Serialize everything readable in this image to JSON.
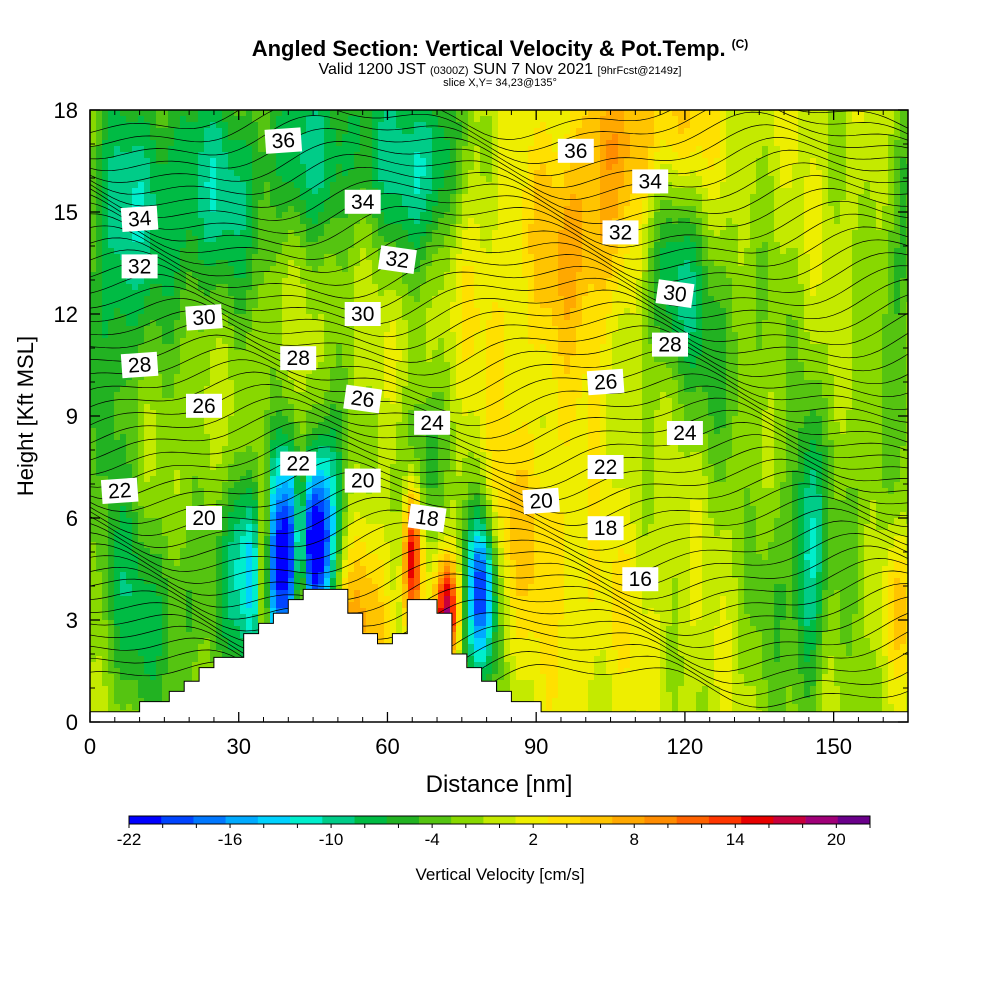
{
  "title": {
    "main": "Angled Section: Vertical Velocity & Pot.Temp.",
    "copyright": "(C)",
    "valid_prefix": "Valid 1200 JST",
    "valid_utc": "(0300Z)",
    "valid_date": "SUN 7 Nov 2021",
    "forecast": "[9hrFcst@2149z]",
    "slice": "slice X,Y= 34,23@135°"
  },
  "chart_data": {
    "type": "heatmap",
    "xlabel": "Distance [nm]",
    "ylabel": "Height [Kft MSL]",
    "xlim": [
      0,
      165
    ],
    "ylim": [
      0,
      18
    ],
    "x_ticks": [
      0,
      30,
      60,
      90,
      120,
      150
    ],
    "y_ticks": [
      0,
      3,
      6,
      9,
      12,
      15,
      18
    ],
    "grid": false,
    "colorbar": {
      "label": "Vertical Velocity [cm/s]",
      "tick_labels": [
        "-22",
        "-16",
        "-10",
        "-4",
        "2",
        "8",
        "14",
        "20"
      ],
      "tick_values": [
        -22,
        -16,
        -10,
        -4,
        2,
        8,
        14,
        20
      ],
      "levels": [
        -22,
        -20,
        -18,
        -16,
        -14,
        -12,
        -10,
        -8,
        -6,
        -4,
        -2,
        0,
        2,
        4,
        6,
        8,
        10,
        12,
        14,
        16,
        18,
        20,
        22
      ],
      "colors": [
        "#0000ff",
        "#0044ff",
        "#0077ff",
        "#00aaff",
        "#00d2ff",
        "#00eecc",
        "#00cc88",
        "#00bb44",
        "#22b222",
        "#55c411",
        "#88d800",
        "#c4ea00",
        "#eeee00",
        "#ffe000",
        "#ffc400",
        "#ffa800",
        "#ff8c00",
        "#ff6200",
        "#ff3600",
        "#e80000",
        "#c8003c",
        "#a00078",
        "#6a008a"
      ]
    },
    "theta_contours": {
      "levels": [
        16,
        18,
        20,
        22,
        24,
        26,
        28,
        30,
        32,
        34,
        36
      ],
      "labels": [
        {
          "text": "36",
          "x": 39,
          "y": 17.1
        },
        {
          "text": "36",
          "x": 98,
          "y": 16.8
        },
        {
          "text": "34",
          "x": 55,
          "y": 15.3
        },
        {
          "text": "34",
          "x": 113,
          "y": 15.9
        },
        {
          "text": "34",
          "x": 10,
          "y": 14.8
        },
        {
          "text": "32",
          "x": 62,
          "y": 13.6
        },
        {
          "text": "32",
          "x": 107,
          "y": 14.4
        },
        {
          "text": "32",
          "x": 10,
          "y": 13.4
        },
        {
          "text": "30",
          "x": 23,
          "y": 11.9
        },
        {
          "text": "30",
          "x": 55,
          "y": 12.0
        },
        {
          "text": "30",
          "x": 118,
          "y": 12.6
        },
        {
          "text": "28",
          "x": 42,
          "y": 10.7
        },
        {
          "text": "28",
          "x": 10,
          "y": 10.5
        },
        {
          "text": "28",
          "x": 117,
          "y": 11.1
        },
        {
          "text": "26",
          "x": 23,
          "y": 9.3
        },
        {
          "text": "26",
          "x": 55,
          "y": 9.5
        },
        {
          "text": "26",
          "x": 104,
          "y": 10.0
        },
        {
          "text": "24",
          "x": 69,
          "y": 8.8
        },
        {
          "text": "24",
          "x": 120,
          "y": 8.5
        },
        {
          "text": "22",
          "x": 42,
          "y": 7.6
        },
        {
          "text": "22",
          "x": 6,
          "y": 6.8
        },
        {
          "text": "22",
          "x": 104,
          "y": 7.5
        },
        {
          "text": "20",
          "x": 55,
          "y": 7.1
        },
        {
          "text": "20",
          "x": 23,
          "y": 6.0
        },
        {
          "text": "20",
          "x": 91,
          "y": 6.5
        },
        {
          "text": "18",
          "x": 68,
          "y": 6.0
        },
        {
          "text": "18",
          "x": 104,
          "y": 5.7
        },
        {
          "text": "16",
          "x": 111,
          "y": 4.2
        }
      ]
    },
    "terrain": [
      [
        0,
        0.3
      ],
      [
        10,
        0.3
      ],
      [
        10,
        0.6
      ],
      [
        16,
        0.6
      ],
      [
        16,
        0.9
      ],
      [
        19,
        0.9
      ],
      [
        19,
        1.2
      ],
      [
        22,
        1.2
      ],
      [
        22,
        1.6
      ],
      [
        25,
        1.6
      ],
      [
        25,
        1.9
      ],
      [
        31,
        1.9
      ],
      [
        31,
        2.6
      ],
      [
        34,
        2.6
      ],
      [
        34,
        2.9
      ],
      [
        37,
        2.9
      ],
      [
        37,
        3.2
      ],
      [
        40,
        3.2
      ],
      [
        40,
        3.6
      ],
      [
        43,
        3.6
      ],
      [
        43,
        3.9
      ],
      [
        52,
        3.9
      ],
      [
        52,
        3.2
      ],
      [
        55,
        3.2
      ],
      [
        55,
        2.6
      ],
      [
        58,
        2.6
      ],
      [
        58,
        2.3
      ],
      [
        61,
        2.3
      ],
      [
        61,
        2.6
      ],
      [
        64,
        2.6
      ],
      [
        64,
        3.6
      ],
      [
        70,
        3.6
      ],
      [
        70,
        3.2
      ],
      [
        73,
        3.2
      ],
      [
        73,
        2.0
      ],
      [
        76,
        2.0
      ],
      [
        76,
        1.6
      ],
      [
        79,
        1.6
      ],
      [
        79,
        1.2
      ],
      [
        82,
        1.2
      ],
      [
        82,
        0.9
      ],
      [
        85,
        0.9
      ],
      [
        85,
        0.6
      ],
      [
        91,
        0.6
      ],
      [
        91,
        0.3
      ],
      [
        165,
        0.3
      ],
      [
        165,
        0
      ]
    ],
    "velocity_features": [
      {
        "x": 36,
        "y": 4.3,
        "w": -15,
        "sx": 3,
        "sy": 2.2
      },
      {
        "x": 31,
        "y": 4.6,
        "w": -10,
        "sx": 3.5,
        "sy": 2.2
      },
      {
        "x": 40,
        "y": 5.0,
        "w": -14,
        "sx": 2.5,
        "sy": 2.5
      },
      {
        "x": 45,
        "y": 5.0,
        "w": -20,
        "sx": 2.5,
        "sy": 1.7
      },
      {
        "x": 48,
        "y": 6.0,
        "w": -12,
        "sx": 3,
        "sy": 2.5
      },
      {
        "x": 42.5,
        "y": 4.5,
        "w": 18,
        "sx": 1.1,
        "sy": 2.3
      },
      {
        "x": 35,
        "y": 4.6,
        "w": 20,
        "sx": 1.1,
        "sy": 2.2
      },
      {
        "x": 53,
        "y": 3.2,
        "w": 8,
        "sx": 6,
        "sy": 2.0
      },
      {
        "x": 65,
        "y": 5.0,
        "w": 18,
        "sx": 1.3,
        "sy": 1.5
      },
      {
        "x": 67,
        "y": 7.5,
        "w": -8,
        "sx": 3.5,
        "sy": 1.8
      },
      {
        "x": 72,
        "y": 3.3,
        "w": 18,
        "sx": 1.8,
        "sy": 1.0
      },
      {
        "x": 79,
        "y": 4.0,
        "w": -14,
        "sx": 1.8,
        "sy": 1.5
      },
      {
        "x": 78,
        "y": 3.3,
        "w": -9,
        "sx": 2.8,
        "sy": 2.5
      },
      {
        "x": 12,
        "y": 15.5,
        "w": -7,
        "sx": 10,
        "sy": 3.0
      },
      {
        "x": 5,
        "y": 12.0,
        "w": -6,
        "sx": 4,
        "sy": 4.0
      },
      {
        "x": 27,
        "y": 15.5,
        "w": -7,
        "sx": 8,
        "sy": 2.5
      },
      {
        "x": 47,
        "y": 17.0,
        "w": -9,
        "sx": 8,
        "sy": 2.0
      },
      {
        "x": 62,
        "y": 16.2,
        "w": -7,
        "sx": 5,
        "sy": 2.5
      },
      {
        "x": 70,
        "y": 16.5,
        "w": -9,
        "sx": 4,
        "sy": 2.0
      },
      {
        "x": 117,
        "y": 13.0,
        "w": -8,
        "sx": 5,
        "sy": 2.0
      },
      {
        "x": 127,
        "y": 11.0,
        "w": -5,
        "sx": 8,
        "sy": 2.5
      },
      {
        "x": 164,
        "y": 14.5,
        "w": -6,
        "sx": 3,
        "sy": 3.0
      },
      {
        "x": 100,
        "y": 14.5,
        "w": 6,
        "sx": 7,
        "sy": 2.0
      },
      {
        "x": 112,
        "y": 17.5,
        "w": 6,
        "sx": 10,
        "sy": 1.5
      },
      {
        "x": 90,
        "y": 12.0,
        "w": 3,
        "sx": 18,
        "sy": 3.0
      },
      {
        "x": 8,
        "y": 3.5,
        "w": -6,
        "sx": 5,
        "sy": 2.5
      },
      {
        "x": 18,
        "y": 3.0,
        "w": -5,
        "sx": 5,
        "sy": 2.0
      },
      {
        "x": 145,
        "y": 4.5,
        "w": -9,
        "sx": 2.2,
        "sy": 3.0
      },
      {
        "x": 139,
        "y": 4.0,
        "w": -4,
        "sx": 4,
        "sy": 2.5
      },
      {
        "x": 163,
        "y": 3.5,
        "w": 6,
        "sx": 2.5,
        "sy": 1.5
      },
      {
        "x": 100,
        "y": 3.0,
        "w": 3,
        "sx": 12,
        "sy": 2.5
      },
      {
        "x": 86,
        "y": 6.0,
        "w": 4,
        "sx": 8,
        "sy": 2.0
      },
      {
        "x": 155,
        "y": 7.0,
        "w": -3,
        "sx": 8,
        "sy": 3.0
      }
    ]
  }
}
